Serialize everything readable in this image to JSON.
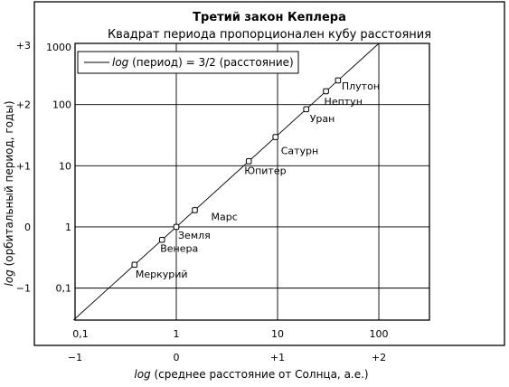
{
  "chart_data": {
    "type": "scatter",
    "title": "Третий закон Кеплера",
    "subtitle": "Квадрат периода пропорционален кубу расстояния",
    "x_scale": "log",
    "y_scale": "log",
    "xlim": [
      0.1,
      316
    ],
    "ylim": [
      0.03,
      1000
    ],
    "x_inner_ticks": [
      "0,1",
      "1",
      "10",
      "100"
    ],
    "x_outer_ticks": [
      "−1",
      "0",
      "+1",
      "+2"
    ],
    "y_inner_ticks": [
      "0,1",
      "1",
      "10",
      "100",
      "1000"
    ],
    "y_outer_ticks": [
      "−1",
      "0",
      "+1",
      "+2",
      "+3"
    ],
    "xlabel_italic": "log",
    "xlabel_rest": " (среднее расстояние от Солнца, а.е.)",
    "ylabel_italic": "log",
    "ylabel_rest": " (орбитальный период, годы)",
    "legend": {
      "italic": "log",
      "rest": " (период) = 3/2 (расстояние)",
      "position": "top-left"
    },
    "fit": {
      "slope": 1.5,
      "intercept": 0
    },
    "points": [
      {
        "name": "Меркурий",
        "x": 0.387,
        "y": 0.241
      },
      {
        "name": "Венера",
        "x": 0.723,
        "y": 0.615
      },
      {
        "name": "Земля",
        "x": 1.0,
        "y": 1.0
      },
      {
        "name": "Марс",
        "x": 1.524,
        "y": 1.881
      },
      {
        "name": "Юпитер",
        "x": 5.2,
        "y": 11.86
      },
      {
        "name": "Сатурн",
        "x": 9.54,
        "y": 29.46
      },
      {
        "name": "Уран",
        "x": 19.19,
        "y": 84.01
      },
      {
        "name": "Нептун",
        "x": 30.06,
        "y": 164.8
      },
      {
        "name": "Плутон",
        "x": 39.53,
        "y": 248.1
      }
    ],
    "grid": true
  }
}
